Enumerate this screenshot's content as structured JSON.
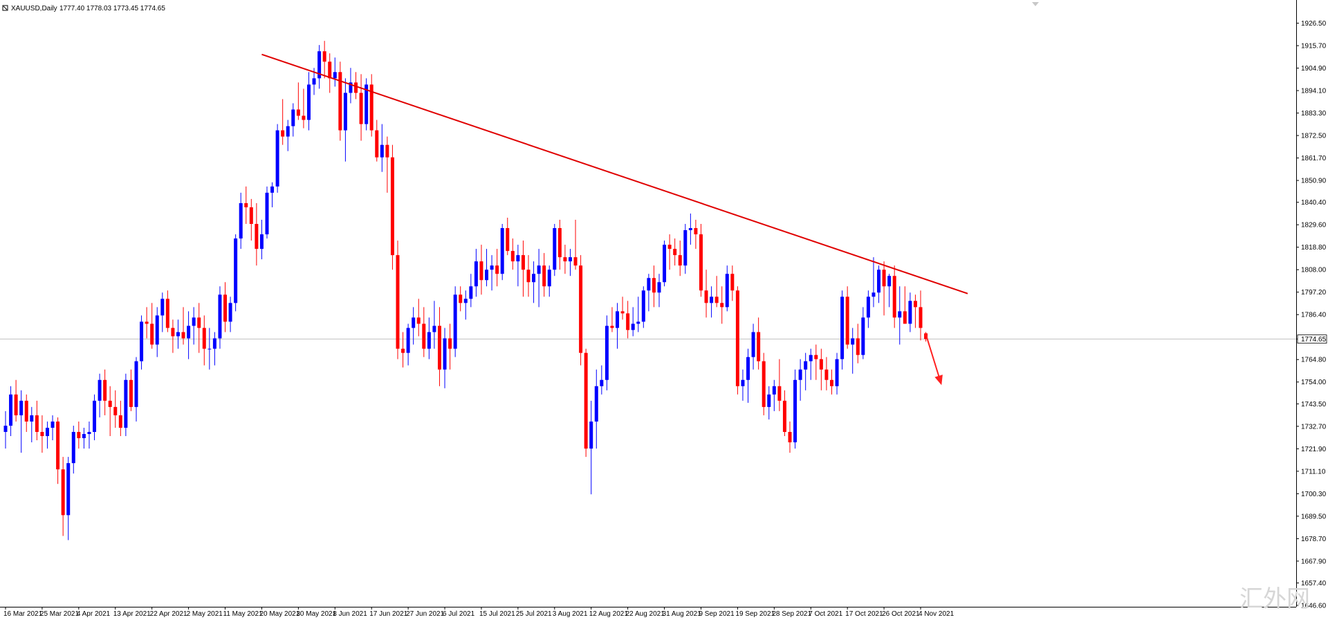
{
  "header": {
    "symbol": "XAUUSD,Daily",
    "ohlc": "1777.40 1778.03 1773.45 1774.65"
  },
  "current_price_label": "1774.65",
  "watermark": "汇外网",
  "colors": {
    "bull": "#0000ff",
    "bear": "#ff0000",
    "trendline": "#e00000",
    "arrow": "#ff2020",
    "grid_price_line": "#c0c0c0",
    "axis": "#000000"
  },
  "chart_data": {
    "type": "candlestick",
    "symbol": "XAUUSD",
    "timeframe": "Daily",
    "ylim": [
      1646.6,
      1932.0
    ],
    "y_ticks": [
      "1926.50",
      "1915.70",
      "1904.90",
      "1894.10",
      "1883.30",
      "1872.50",
      "1861.70",
      "1850.90",
      "1840.40",
      "1829.60",
      "1818.80",
      "1808.00",
      "1797.20",
      "1786.40",
      "1774.65",
      "1764.80",
      "1754.00",
      "1743.50",
      "1732.70",
      "1721.90",
      "1711.10",
      "1700.30",
      "1689.50",
      "1678.70",
      "1667.90",
      "1657.40",
      "1646.60"
    ],
    "y_tick_values": [
      1926.5,
      1915.7,
      1904.9,
      1894.1,
      1883.3,
      1872.5,
      1861.7,
      1850.9,
      1840.4,
      1829.6,
      1818.8,
      1808.0,
      1797.2,
      1786.4,
      1774.65,
      1764.8,
      1754.0,
      1743.5,
      1732.7,
      1721.9,
      1711.1,
      1700.3,
      1689.5,
      1678.7,
      1667.9,
      1657.4,
      1646.6
    ],
    "x_ticks": [
      "16 Mar 2021",
      "25 Mar 2021",
      "4 Apr 2021",
      "13 Apr 2021",
      "22 Apr 2021",
      "2 May 2021",
      "11 May 2021",
      "20 May 2021",
      "30 May 2021",
      "8 Jun 2021",
      "17 Jun 2021",
      "27 Jun 2021",
      "6 Jul 2021",
      "15 Jul 2021",
      "25 Jul 2021",
      "3 Aug 2021",
      "12 Aug 2021",
      "22 Aug 2021",
      "31 Aug 2021",
      "9 Sep 2021",
      "19 Sep 2021",
      "28 Sep 2021",
      "7 Oct 2021",
      "17 Oct 2021",
      "26 Oct 2021",
      "4 Nov 2021"
    ],
    "x_tick_bar_index": [
      0,
      7,
      14,
      21,
      28,
      35,
      42,
      49,
      56,
      63,
      70,
      77,
      84,
      91,
      98,
      105,
      112,
      119,
      126,
      133,
      140,
      147,
      154,
      161,
      168,
      175
    ],
    "candles": [
      [
        1730,
        1740,
        1722,
        1733
      ],
      [
        1733,
        1752,
        1728,
        1748
      ],
      [
        1748,
        1755,
        1735,
        1738
      ],
      [
        1738,
        1750,
        1720,
        1745
      ],
      [
        1745,
        1748,
        1730,
        1735
      ],
      [
        1735,
        1742,
        1725,
        1738
      ],
      [
        1738,
        1745,
        1726,
        1730
      ],
      [
        1730,
        1738,
        1720,
        1728
      ],
      [
        1728,
        1735,
        1722,
        1732
      ],
      [
        1732,
        1738,
        1726,
        1735
      ],
      [
        1735,
        1737,
        1705,
        1712
      ],
      [
        1712,
        1718,
        1680,
        1690
      ],
      [
        1690,
        1718,
        1678,
        1715
      ],
      [
        1715,
        1733,
        1710,
        1730
      ],
      [
        1730,
        1735,
        1722,
        1727
      ],
      [
        1727,
        1732,
        1722,
        1729
      ],
      [
        1729,
        1735,
        1722,
        1730
      ],
      [
        1730,
        1748,
        1726,
        1745
      ],
      [
        1745,
        1758,
        1737,
        1755
      ],
      [
        1755,
        1760,
        1738,
        1745
      ],
      [
        1745,
        1752,
        1728,
        1742
      ],
      [
        1742,
        1750,
        1732,
        1738
      ],
      [
        1738,
        1745,
        1728,
        1732
      ],
      [
        1732,
        1758,
        1728,
        1755
      ],
      [
        1755,
        1760,
        1740,
        1742
      ],
      [
        1742,
        1766,
        1735,
        1764
      ],
      [
        1764,
        1786,
        1760,
        1783
      ],
      [
        1783,
        1790,
        1775,
        1782
      ],
      [
        1782,
        1792,
        1770,
        1772
      ],
      [
        1772,
        1790,
        1766,
        1786
      ],
      [
        1786,
        1797,
        1778,
        1794
      ],
      [
        1794,
        1798,
        1778,
        1780
      ],
      [
        1780,
        1784,
        1768,
        1776
      ],
      [
        1776,
        1784,
        1770,
        1778
      ],
      [
        1778,
        1790,
        1772,
        1775
      ],
      [
        1775,
        1788,
        1765,
        1781
      ],
      [
        1781,
        1790,
        1772,
        1785
      ],
      [
        1785,
        1792,
        1768,
        1780
      ],
      [
        1780,
        1786,
        1762,
        1770
      ],
      [
        1770,
        1780,
        1760,
        1770
      ],
      [
        1770,
        1778,
        1762,
        1775
      ],
      [
        1775,
        1800,
        1770,
        1796
      ],
      [
        1796,
        1802,
        1778,
        1783
      ],
      [
        1783,
        1795,
        1778,
        1792
      ],
      [
        1792,
        1825,
        1788,
        1823
      ],
      [
        1823,
        1845,
        1818,
        1840
      ],
      [
        1840,
        1848,
        1830,
        1838
      ],
      [
        1838,
        1842,
        1822,
        1830
      ],
      [
        1830,
        1840,
        1810,
        1818
      ],
      [
        1818,
        1832,
        1813,
        1825
      ],
      [
        1825,
        1848,
        1823,
        1845
      ],
      [
        1845,
        1850,
        1838,
        1848
      ],
      [
        1848,
        1878,
        1845,
        1875
      ],
      [
        1875,
        1890,
        1868,
        1872
      ],
      [
        1872,
        1880,
        1865,
        1877
      ],
      [
        1877,
        1888,
        1872,
        1885
      ],
      [
        1885,
        1898,
        1880,
        1882
      ],
      [
        1882,
        1895,
        1876,
        1880
      ],
      [
        1880,
        1903,
        1875,
        1897
      ],
      [
        1897,
        1905,
        1892,
        1900
      ],
      [
        1900,
        1916,
        1895,
        1913
      ],
      [
        1913,
        1918,
        1900,
        1908
      ],
      [
        1908,
        1912,
        1893,
        1900
      ],
      [
        1900,
        1910,
        1896,
        1903
      ],
      [
        1903,
        1908,
        1870,
        1875
      ],
      [
        1875,
        1900,
        1860,
        1893
      ],
      [
        1893,
        1905,
        1888,
        1898
      ],
      [
        1898,
        1903,
        1890,
        1893
      ],
      [
        1893,
        1902,
        1870,
        1878
      ],
      [
        1878,
        1900,
        1875,
        1897
      ],
      [
        1897,
        1902,
        1872,
        1875
      ],
      [
        1875,
        1880,
        1860,
        1862
      ],
      [
        1862,
        1878,
        1855,
        1868
      ],
      [
        1868,
        1872,
        1845,
        1862
      ],
      [
        1862,
        1868,
        1808,
        1815
      ],
      [
        1815,
        1822,
        1765,
        1770
      ],
      [
        1770,
        1778,
        1761,
        1768
      ],
      [
        1768,
        1782,
        1762,
        1780
      ],
      [
        1780,
        1790,
        1772,
        1785
      ],
      [
        1785,
        1794,
        1776,
        1782
      ],
      [
        1782,
        1790,
        1766,
        1770
      ],
      [
        1770,
        1785,
        1765,
        1778
      ],
      [
        1778,
        1793,
        1770,
        1781
      ],
      [
        1781,
        1790,
        1752,
        1760
      ],
      [
        1760,
        1780,
        1751,
        1775
      ],
      [
        1775,
        1782,
        1760,
        1770
      ],
      [
        1770,
        1800,
        1766,
        1796
      ],
      [
        1796,
        1800,
        1788,
        1792
      ],
      [
        1792,
        1798,
        1784,
        1794
      ],
      [
        1794,
        1806,
        1790,
        1800
      ],
      [
        1800,
        1818,
        1795,
        1812
      ],
      [
        1812,
        1820,
        1796,
        1803
      ],
      [
        1803,
        1818,
        1800,
        1808
      ],
      [
        1808,
        1815,
        1798,
        1810
      ],
      [
        1810,
        1818,
        1800,
        1806
      ],
      [
        1806,
        1830,
        1803,
        1828
      ],
      [
        1828,
        1833,
        1815,
        1817
      ],
      [
        1817,
        1823,
        1808,
        1812
      ],
      [
        1812,
        1820,
        1800,
        1815
      ],
      [
        1815,
        1822,
        1795,
        1808
      ],
      [
        1808,
        1815,
        1795,
        1802
      ],
      [
        1802,
        1812,
        1792,
        1806
      ],
      [
        1806,
        1818,
        1790,
        1810
      ],
      [
        1810,
        1816,
        1795,
        1800
      ],
      [
        1800,
        1810,
        1795,
        1808
      ],
      [
        1808,
        1830,
        1805,
        1828
      ],
      [
        1828,
        1832,
        1808,
        1814
      ],
      [
        1814,
        1820,
        1806,
        1812
      ],
      [
        1812,
        1818,
        1805,
        1814
      ],
      [
        1814,
        1832,
        1808,
        1810
      ],
      [
        1810,
        1815,
        1762,
        1768
      ],
      [
        1768,
        1770,
        1718,
        1722
      ],
      [
        1722,
        1745,
        1700,
        1735
      ],
      [
        1735,
        1760,
        1722,
        1752
      ],
      [
        1752,
        1762,
        1748,
        1755
      ],
      [
        1755,
        1786,
        1750,
        1781
      ],
      [
        1781,
        1790,
        1778,
        1780
      ],
      [
        1780,
        1792,
        1770,
        1788
      ],
      [
        1788,
        1795,
        1784,
        1787
      ],
      [
        1787,
        1793,
        1775,
        1779
      ],
      [
        1779,
        1790,
        1776,
        1782
      ],
      [
        1782,
        1795,
        1778,
        1783
      ],
      [
        1783,
        1800,
        1780,
        1798
      ],
      [
        1798,
        1806,
        1788,
        1804
      ],
      [
        1804,
        1810,
        1790,
        1797
      ],
      [
        1797,
        1806,
        1790,
        1802
      ],
      [
        1802,
        1822,
        1800,
        1820
      ],
      [
        1820,
        1825,
        1808,
        1818
      ],
      [
        1818,
        1823,
        1810,
        1815
      ],
      [
        1815,
        1822,
        1805,
        1810
      ],
      [
        1810,
        1830,
        1806,
        1827
      ],
      [
        1827,
        1835,
        1820,
        1828
      ],
      [
        1828,
        1832,
        1818,
        1825
      ],
      [
        1825,
        1830,
        1795,
        1798
      ],
      [
        1798,
        1808,
        1785,
        1792
      ],
      [
        1792,
        1800,
        1785,
        1795
      ],
      [
        1795,
        1805,
        1790,
        1792
      ],
      [
        1792,
        1800,
        1782,
        1790
      ],
      [
        1790,
        1810,
        1788,
        1806
      ],
      [
        1806,
        1810,
        1793,
        1798
      ],
      [
        1798,
        1800,
        1748,
        1752
      ],
      [
        1752,
        1760,
        1745,
        1755
      ],
      [
        1755,
        1770,
        1744,
        1766
      ],
      [
        1766,
        1782,
        1760,
        1778
      ],
      [
        1778,
        1785,
        1760,
        1764
      ],
      [
        1764,
        1768,
        1738,
        1742
      ],
      [
        1742,
        1752,
        1736,
        1748
      ],
      [
        1748,
        1755,
        1740,
        1752
      ],
      [
        1752,
        1765,
        1740,
        1745
      ],
      [
        1745,
        1750,
        1728,
        1730
      ],
      [
        1730,
        1735,
        1720,
        1725
      ],
      [
        1725,
        1760,
        1722,
        1755
      ],
      [
        1755,
        1765,
        1745,
        1760
      ],
      [
        1760,
        1768,
        1750,
        1764
      ],
      [
        1764,
        1770,
        1755,
        1767
      ],
      [
        1767,
        1772,
        1755,
        1765
      ],
      [
        1765,
        1770,
        1750,
        1760
      ],
      [
        1760,
        1766,
        1750,
        1755
      ],
      [
        1755,
        1760,
        1748,
        1752
      ],
      [
        1752,
        1768,
        1748,
        1765
      ],
      [
        1765,
        1798,
        1760,
        1795
      ],
      [
        1795,
        1800,
        1770,
        1772
      ],
      [
        1772,
        1780,
        1758,
        1775
      ],
      [
        1775,
        1782,
        1763,
        1767
      ],
      [
        1767,
        1790,
        1765,
        1785
      ],
      [
        1785,
        1798,
        1780,
        1795
      ],
      [
        1795,
        1814,
        1790,
        1797
      ],
      [
        1797,
        1810,
        1792,
        1808
      ],
      [
        1808,
        1812,
        1786,
        1800
      ],
      [
        1800,
        1806,
        1790,
        1805
      ],
      [
        1805,
        1810,
        1780,
        1785
      ],
      [
        1785,
        1800,
        1772,
        1788
      ],
      [
        1788,
        1800,
        1782,
        1782
      ],
      [
        1782,
        1797,
        1778,
        1793
      ],
      [
        1793,
        1796,
        1780,
        1790
      ],
      [
        1790,
        1798,
        1774,
        1780
      ],
      [
        1777.4,
        1778.03,
        1773.45,
        1774.65
      ]
    ],
    "trendline": {
      "from_bar": 49,
      "from_price": 1911.5,
      "to_bar": 167,
      "to_price": 1811.0,
      "extend_to_bar": 184
    },
    "arrow": {
      "from_bar": 176,
      "from_price": 1777.0,
      "to_bar": 179,
      "to_price": 1752.5
    },
    "current_price": 1774.65
  }
}
